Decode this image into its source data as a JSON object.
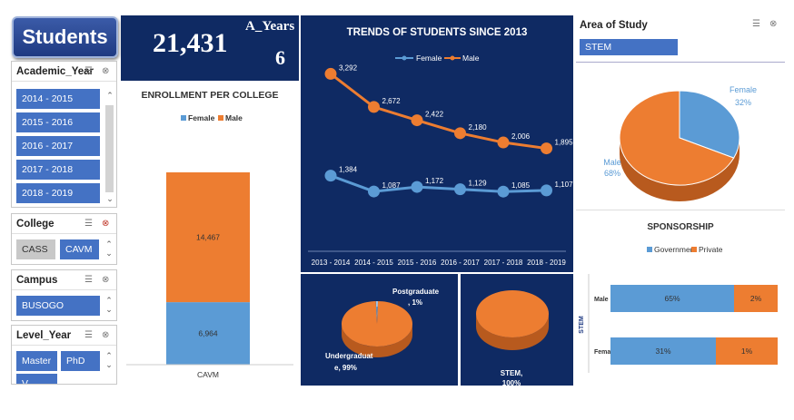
{
  "dashboard": {
    "title": "Students"
  },
  "kpi": {
    "total": "21,431",
    "years_label": "A_Years",
    "years_value": "6"
  },
  "slicers": {
    "academic_year": {
      "label": "Academic_Year",
      "items": [
        "2014 - 2015",
        "2015 - 2016",
        "2016 - 2017",
        "2017 - 2018",
        "2018 - 2019"
      ]
    },
    "college": {
      "label": "College",
      "items": [
        "CASS",
        "CAVM"
      ]
    },
    "campus": {
      "label": "Campus",
      "items": [
        "BUSOGO"
      ]
    },
    "level_year": {
      "label": "Level_Year",
      "items": [
        "Master",
        "PhD",
        "V..."
      ]
    },
    "area_of_study": {
      "label": "Area of Study",
      "items": [
        "STEM"
      ]
    }
  },
  "colors": {
    "blue": "#5b9bd5",
    "orange": "#ed7d31",
    "navy": "#0f2a63",
    "slicer_blue": "#4472c4"
  },
  "chart_data": [
    {
      "type": "bar",
      "title": "ENROLLMENT PER COLLEGE",
      "categories": [
        "CAVM"
      ],
      "series": [
        {
          "name": "Female",
          "values": [
            6964
          ]
        },
        {
          "name": "Male",
          "values": [
            14467
          ]
        }
      ],
      "data_labels": [
        "6,964",
        "14,467"
      ],
      "legend": "top",
      "stacked": true
    },
    {
      "type": "line",
      "title": "TRENDS OF STUDENTS SINCE 2013",
      "categories": [
        "2013 - 2014",
        "2014 - 2015",
        "2015 - 2016",
        "2016 - 2017",
        "2017 - 2018",
        "2018 - 2019"
      ],
      "series": [
        {
          "name": "Female",
          "values": [
            1384,
            1087,
            1172,
            1129,
            1085,
            1107
          ],
          "labels": [
            "1,384",
            "1,087",
            "1,172",
            "1,129",
            "1,085",
            "1,107"
          ]
        },
        {
          "name": "Male",
          "values": [
            3292,
            2672,
            2422,
            2180,
            2006,
            1895
          ],
          "labels": [
            "3,292",
            "2,672",
            "2,422",
            "2,180",
            "2,006",
            "1,895"
          ]
        }
      ],
      "legend": "top"
    },
    {
      "type": "pie",
      "labels": [
        "Postgraduate",
        "Undergraduate"
      ],
      "values": [
        1,
        99
      ],
      "label_text": [
        "Postgraduate\n, 1%",
        "Undergraduat\ne, 99%"
      ]
    },
    {
      "type": "pie",
      "labels": [
        "STEM"
      ],
      "values": [
        100
      ],
      "label_text": [
        "STEM,\n100%"
      ]
    },
    {
      "type": "pie",
      "labels": [
        "Female",
        "Male"
      ],
      "values": [
        32,
        68
      ],
      "label_text": [
        "Female\n32%",
        "Male\n68%"
      ]
    },
    {
      "type": "bar",
      "title": "SPONSORSHIP",
      "categories": [
        "Male",
        "Female"
      ],
      "axis_label": "STEM",
      "series": [
        {
          "name": "Government",
          "values": [
            65,
            31
          ],
          "labels": [
            "65%",
            "31%"
          ]
        },
        {
          "name": "Private",
          "values": [
            2,
            1
          ],
          "labels": [
            "2%",
            "1%"
          ]
        }
      ],
      "legend": "top",
      "stacked": true,
      "orientation": "horizontal"
    }
  ]
}
